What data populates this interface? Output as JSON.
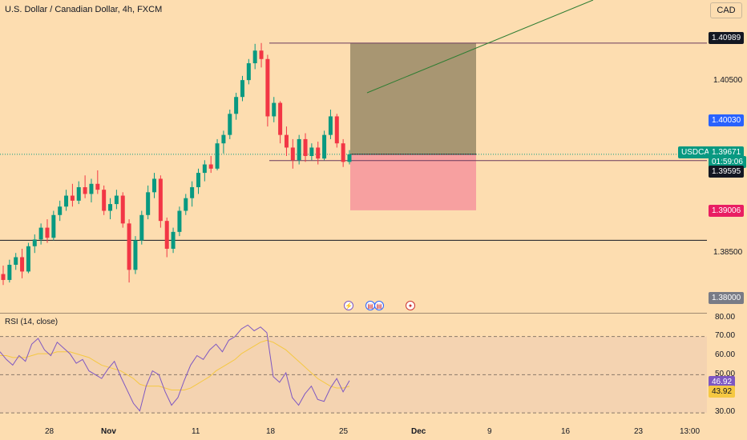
{
  "symbol_title": "U.S. Dollar / Canadian Dollar, 4h, FXCM",
  "currency_button": "CAD",
  "price_axis": {
    "labels": [
      "1.40500",
      "1.38500",
      "1.38000"
    ],
    "tags": {
      "target": "1.40989",
      "level_blue": "1.40030",
      "symbol": "USDCAD",
      "current": "1.39671",
      "countdown": "01:59:06",
      "line_level": "1.39595",
      "stop": "1.39006"
    }
  },
  "rsi": {
    "title": "RSI (14, close)",
    "axis_labels": [
      "80.00",
      "70.00",
      "60.00",
      "50.00",
      "30.00"
    ],
    "value_rsi": "46.92",
    "value_ma": "43.92"
  },
  "time_axis": [
    "28",
    "Nov",
    "11",
    "18",
    "25",
    "Dec",
    "9",
    "16",
    "23",
    "13:00"
  ],
  "colors": {
    "up": "#089981",
    "down": "#F23645",
    "background": "#FDDDB0",
    "rsi_line": "#7E57C2",
    "rsi_ma": "#F5C842"
  },
  "chart_data": {
    "type": "candlestick",
    "series": [
      {
        "name": "USDCAD",
        "ohlc": [
          [
            1.3825,
            1.3835,
            1.3812,
            1.3818
          ],
          [
            1.3818,
            1.3842,
            1.3815,
            1.3836
          ],
          [
            1.3836,
            1.385,
            1.383,
            1.3845
          ],
          [
            1.3845,
            1.3855,
            1.382,
            1.3828
          ],
          [
            1.3828,
            1.3862,
            1.3826,
            1.3858
          ],
          [
            1.3858,
            1.3872,
            1.385,
            1.3866
          ],
          [
            1.3866,
            1.3885,
            1.386,
            1.388
          ],
          [
            1.388,
            1.389,
            1.3862,
            1.3868
          ],
          [
            1.3868,
            1.39,
            1.3865,
            1.3895
          ],
          [
            1.3895,
            1.3912,
            1.3888,
            1.3905
          ],
          [
            1.3905,
            1.3925,
            1.39,
            1.3918
          ],
          [
            1.3918,
            1.3932,
            1.3905,
            1.3912
          ],
          [
            1.3912,
            1.3935,
            1.3908,
            1.3928
          ],
          [
            1.3928,
            1.3942,
            1.3915,
            1.392
          ],
          [
            1.392,
            1.3938,
            1.391,
            1.3932
          ],
          [
            1.3932,
            1.3948,
            1.392,
            1.3925
          ],
          [
            1.3925,
            1.393,
            1.3895,
            1.39
          ],
          [
            1.39,
            1.3915,
            1.389,
            1.3908
          ],
          [
            1.3908,
            1.3925,
            1.3902,
            1.3918
          ],
          [
            1.3918,
            1.3922,
            1.388,
            1.3885
          ],
          [
            1.3885,
            1.389,
            1.3815,
            1.383
          ],
          [
            1.383,
            1.387,
            1.3825,
            1.3865
          ],
          [
            1.3865,
            1.39,
            1.386,
            1.3895
          ],
          [
            1.3895,
            1.393,
            1.389,
            1.3922
          ],
          [
            1.3922,
            1.3945,
            1.3915,
            1.3938
          ],
          [
            1.3938,
            1.3942,
            1.388,
            1.3888
          ],
          [
            1.3888,
            1.3892,
            1.3845,
            1.3855
          ],
          [
            1.3855,
            1.388,
            1.385,
            1.3875
          ],
          [
            1.3875,
            1.3905,
            1.387,
            1.39
          ],
          [
            1.39,
            1.392,
            1.3895,
            1.3915
          ],
          [
            1.3915,
            1.3935,
            1.3905,
            1.3928
          ],
          [
            1.3928,
            1.395,
            1.392,
            1.3945
          ],
          [
            1.3945,
            1.396,
            1.3935,
            1.3955
          ],
          [
            1.3955,
            1.3965,
            1.3945,
            1.395
          ],
          [
            1.395,
            1.3985,
            1.3948,
            1.398
          ],
          [
            1.398,
            1.3995,
            1.3968,
            1.399
          ],
          [
            1.399,
            1.402,
            1.3985,
            1.4015
          ],
          [
            1.4015,
            1.404,
            1.4008,
            1.4035
          ],
          [
            1.4035,
            1.406,
            1.403,
            1.4055
          ],
          [
            1.4055,
            1.408,
            1.405,
            1.4075
          ],
          [
            1.4075,
            1.4098,
            1.4068,
            1.409
          ],
          [
            1.409,
            1.4099,
            1.407,
            1.408
          ],
          [
            1.408,
            1.4085,
            1.4,
            1.4012
          ],
          [
            1.4012,
            1.4035,
            1.4005,
            1.4028
          ],
          [
            1.4028,
            1.403,
            1.398,
            1.399
          ],
          [
            1.399,
            1.4,
            1.3965,
            1.3975
          ],
          [
            1.3975,
            1.3985,
            1.395,
            1.396
          ],
          [
            1.396,
            1.399,
            1.3955,
            1.3985
          ],
          [
            1.3985,
            1.3992,
            1.3958,
            1.3965
          ],
          [
            1.3965,
            1.398,
            1.396,
            1.3975
          ],
          [
            1.3975,
            1.3982,
            1.3955,
            1.3962
          ],
          [
            1.3962,
            1.3995,
            1.396,
            1.399
          ],
          [
            1.399,
            1.402,
            1.3985,
            1.4012
          ],
          [
            1.4012,
            1.4015,
            1.3975,
            1.398
          ],
          [
            1.398,
            1.3985,
            1.3952,
            1.3958
          ],
          [
            1.3958,
            1.3972,
            1.3955,
            1.3967
          ]
        ]
      }
    ],
    "ylim": [
      1.378,
      1.415
    ],
    "levels": {
      "target": 1.40989,
      "line": 1.39595,
      "stop": 1.39006,
      "lower_line": 1.3865
    },
    "rsi_values": [
      62,
      58,
      55,
      60,
      57,
      66,
      69,
      63,
      60,
      67,
      64,
      61,
      56,
      58,
      52,
      50,
      48,
      53,
      57,
      49,
      42,
      35,
      31,
      44,
      52,
      50,
      41,
      34,
      38,
      47,
      55,
      60,
      58,
      63,
      66,
      62,
      68,
      70,
      74,
      76,
      73,
      75,
      72,
      49,
      46,
      51,
      38,
      34,
      40,
      44,
      37,
      36,
      43,
      48,
      41,
      46.92
    ],
    "rsi_ma_values": [
      60,
      60,
      59,
      59,
      59,
      60,
      61,
      61,
      61,
      62,
      62,
      62,
      61,
      60,
      59,
      57,
      55,
      54,
      53,
      52,
      50,
      48,
      45,
      44,
      44,
      44,
      43,
      42,
      42,
      42,
      43,
      45,
      47,
      49,
      52,
      54,
      56,
      58,
      61,
      63,
      65,
      67,
      68,
      67,
      65,
      63,
      60,
      57,
      54,
      51,
      48,
      46,
      44,
      43,
      43,
      43.92
    ],
    "rsi_ylim": [
      25,
      82
    ]
  }
}
